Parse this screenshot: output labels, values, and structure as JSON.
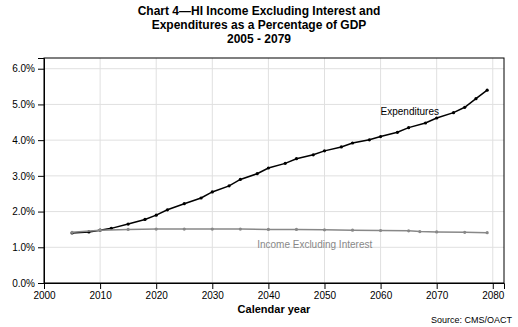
{
  "chart_data": {
    "type": "line",
    "title": "Chart 4—HI Income Excluding Interest and\nExpenditures as a Percentage of GDP\n2005 - 2079",
    "xlabel": "Calendar year",
    "xlim": [
      2000,
      2082
    ],
    "ylim": [
      0.0,
      0.063
    ],
    "xticks": [
      2000,
      2010,
      2020,
      2030,
      2040,
      2050,
      2060,
      2070,
      2080
    ],
    "yticks": [
      {
        "value": 0.0,
        "label": "0.0%"
      },
      {
        "value": 0.01,
        "label": "1.0%"
      },
      {
        "value": 0.02,
        "label": "2.0%"
      },
      {
        "value": 0.03,
        "label": "3.0%"
      },
      {
        "value": 0.04,
        "label": "4.0%"
      },
      {
        "value": 0.05,
        "label": "5.0%"
      },
      {
        "value": 0.06,
        "label": "6.0%"
      }
    ],
    "grid": true,
    "series": [
      {
        "color": "#000000",
        "marker": "circle",
        "x": [
          2005,
          2008,
          2010,
          2012,
          2015,
          2018,
          2020,
          2022,
          2025,
          2028,
          2030,
          2033,
          2035,
          2038,
          2040,
          2043,
          2045,
          2048,
          2050,
          2053,
          2055,
          2058,
          2060,
          2063,
          2065,
          2068,
          2070,
          2073,
          2075,
          2077,
          2079
        ],
        "values": [
          0.014,
          0.0143,
          0.0148,
          0.0153,
          0.0165,
          0.0178,
          0.019,
          0.0205,
          0.0222,
          0.0238,
          0.0255,
          0.0272,
          0.029,
          0.0306,
          0.0322,
          0.0335,
          0.0348,
          0.0359,
          0.037,
          0.0381,
          0.0392,
          0.0401,
          0.041,
          0.0422,
          0.0435,
          0.0448,
          0.0462,
          0.0477,
          0.0492,
          0.0516,
          0.054
        ]
      },
      {
        "color": "#888888",
        "marker": "circle",
        "x": [
          2005,
          2010,
          2015,
          2020,
          2025,
          2030,
          2035,
          2040,
          2045,
          2050,
          2055,
          2060,
          2065,
          2067,
          2070,
          2075,
          2079
        ],
        "values": [
          0.0142,
          0.0148,
          0.015,
          0.0151,
          0.0151,
          0.0151,
          0.0151,
          0.015,
          0.015,
          0.0149,
          0.0148,
          0.0147,
          0.0146,
          0.0144,
          0.0143,
          0.0142,
          0.0141
        ]
      }
    ],
    "annotations": [
      {
        "text": "Expenditures",
        "x": 2060,
        "y": 0.0465,
        "color": "#000000"
      },
      {
        "text": "Income Excluding Interest",
        "x": 2038,
        "y": 0.0122,
        "color": "#888888"
      },
      {
        "text": "Source: CMS/OACT"
      }
    ]
  }
}
